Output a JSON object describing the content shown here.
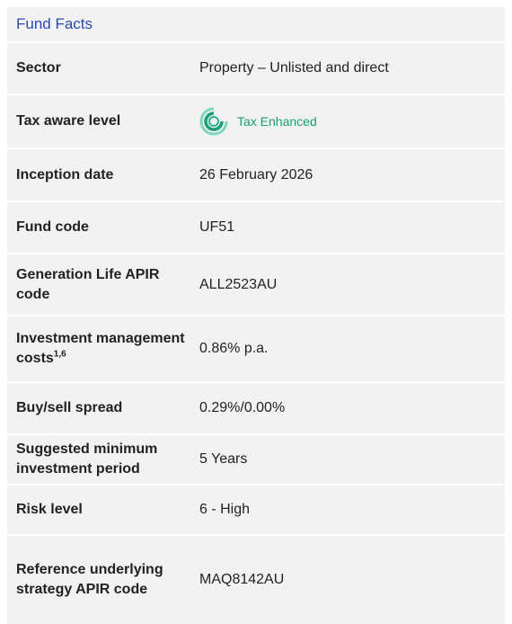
{
  "header": {
    "title": "Fund Facts"
  },
  "table": {
    "rows": [
      {
        "label": "Sector",
        "value": "Property – Unlisted and direct"
      },
      {
        "label": "Tax aware level",
        "value": "Tax Enhanced"
      },
      {
        "label": "Inception date",
        "value": "26 February 2026"
      },
      {
        "label": "Fund code",
        "value": "UF51"
      },
      {
        "label": "Generation Life APIR code",
        "value": "ALL2523AU"
      },
      {
        "label": "Investment management costs",
        "label_superscript": "1,6",
        "value": "0.86% p.a."
      },
      {
        "label": "Buy/sell spread",
        "value": "0.29%/0.00%"
      },
      {
        "label": "Suggested minimum investment period",
        "value": "5 Years"
      },
      {
        "label": "Risk level",
        "value": "6 - High"
      },
      {
        "label": "Reference underlying strategy APIR code",
        "value": "MAQ8142AU"
      }
    ]
  }
}
